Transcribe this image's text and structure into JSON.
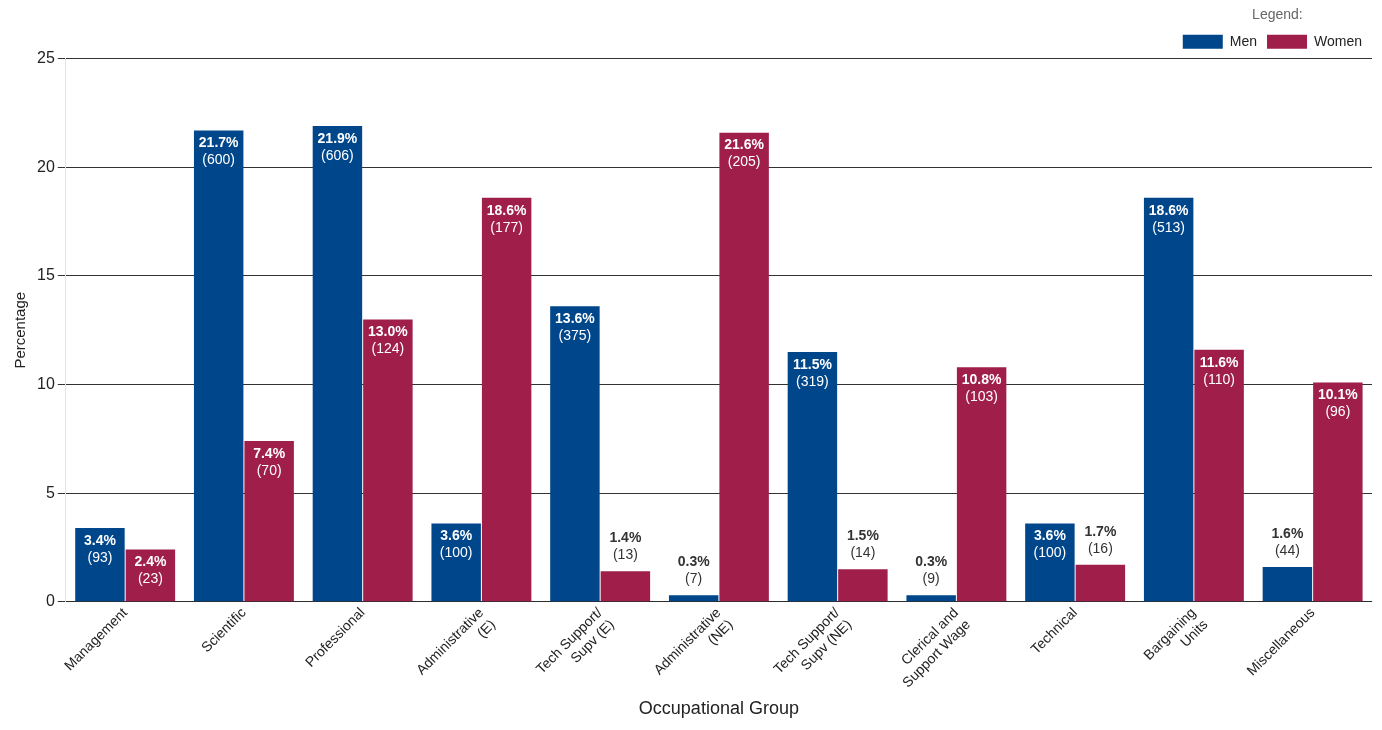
{
  "chart_data": {
    "type": "bar",
    "xlabel": "Occupational Group",
    "ylabel": "Percentage",
    "legend_title": "Legend:",
    "categories": [
      "Management",
      "Scientific",
      "Professional",
      "Administrative\n(E)",
      "Tech Support/\nSupv (E)",
      "Administrative\n(NE)",
      "Tech Support/\nSupv (NE)",
      "Clerical and\nSupport Wage",
      "Technical",
      "Bargaining\nUnits",
      "Miscellaneous"
    ],
    "series": [
      {
        "name": "Men",
        "color": "#00468b",
        "values": [
          3.4,
          21.7,
          21.9,
          3.6,
          13.6,
          0.3,
          11.5,
          0.3,
          3.6,
          18.6,
          1.6
        ],
        "value_labels": [
          "3.4%\n(93)",
          "21.7%\n(600)",
          "21.9%\n(606)",
          "3.6%\n(100)",
          "13.6%\n(375)",
          "0.3%\n(7)",
          "11.5%\n(319)",
          "0.3%\n(9)",
          "3.6%\n(100)",
          "18.6%\n(513)",
          "1.6%\n(44)"
        ]
      },
      {
        "name": "Women",
        "color": "#a01e4a",
        "values": [
          2.4,
          7.4,
          13.0,
          18.6,
          1.4,
          21.6,
          1.5,
          10.8,
          1.7,
          11.6,
          10.1
        ],
        "value_labels": [
          "2.4%\n(23)",
          "7.4%\n(70)",
          "13.0%\n(124)",
          "18.6%\n(177)",
          "1.4%\n(13)",
          "21.6%\n(205)",
          "1.5%\n(14)",
          "10.8%\n(103)",
          "1.7%\n(16)",
          "11.6%\n(110)",
          "10.1%\n(96)"
        ]
      }
    ],
    "ylim": [
      0,
      25
    ],
    "yticks": [
      0,
      5,
      10,
      15,
      20,
      25
    ],
    "grid": "y",
    "legend": "top right"
  }
}
